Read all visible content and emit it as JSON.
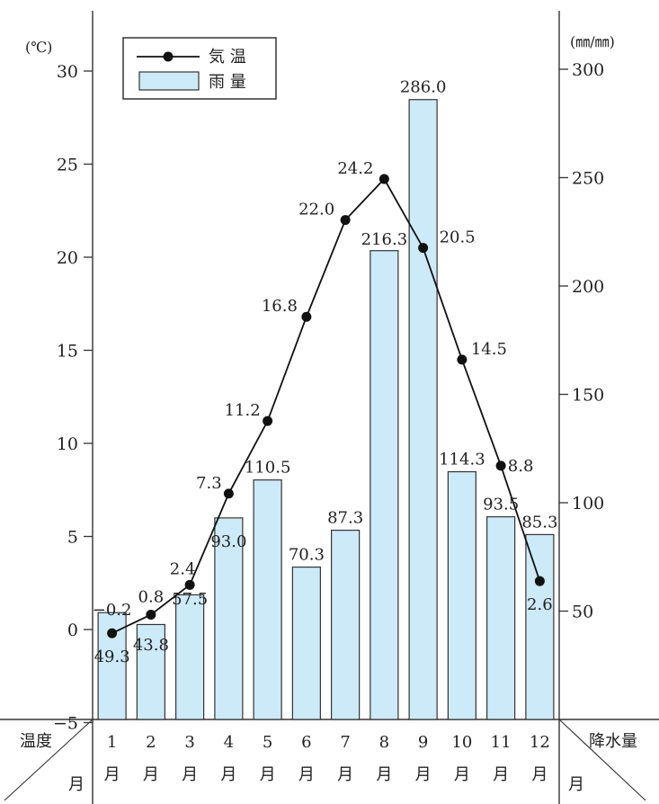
{
  "chart_data": {
    "type": "bar+line",
    "left_axis": {
      "unit": "(℃)",
      "ylim": [
        -5,
        30
      ],
      "ticks": [
        "30",
        "25",
        "20",
        "15",
        "10",
        "5",
        "0",
        "−5"
      ]
    },
    "right_axis": {
      "unit": "(㎜/㎜)",
      "ylim": [
        0,
        300
      ],
      "ticks": [
        "300",
        "250",
        "200",
        "150",
        "100",
        "50"
      ]
    },
    "months": [
      "1",
      "2",
      "3",
      "4",
      "5",
      "6",
      "7",
      "8",
      "9",
      "10",
      "11",
      "12"
    ],
    "month_suffix": "月",
    "temperature": {
      "name": "気 温",
      "values": [
        -0.2,
        0.8,
        2.4,
        7.3,
        11.2,
        16.8,
        22.0,
        24.2,
        20.5,
        14.5,
        8.8,
        2.6
      ],
      "labels": [
        "−0.2",
        "0.8",
        "2.4",
        "7.3",
        "11.2",
        "16.8",
        "22.0",
        "24.2",
        "20.5",
        "14.5",
        "8.8",
        "2.6"
      ]
    },
    "rainfall": {
      "name": "雨 量",
      "values": [
        49.3,
        43.8,
        57.5,
        93.0,
        110.5,
        70.3,
        87.3,
        216.3,
        286.0,
        114.3,
        93.5,
        85.3
      ],
      "labels": [
        "49.3",
        "43.8",
        "57.5",
        "93.0",
        "110.5",
        "70.3",
        "87.3",
        "216.3",
        "286.0",
        "114.3",
        "93.5",
        "85.3"
      ]
    },
    "corner_labels": {
      "temp": "温度",
      "month_left": "月",
      "rain": "降水量",
      "month_right": "月"
    },
    "colors": {
      "bar_fill": "#cdeaf8",
      "line": "#111111",
      "axis": "#333333"
    }
  }
}
